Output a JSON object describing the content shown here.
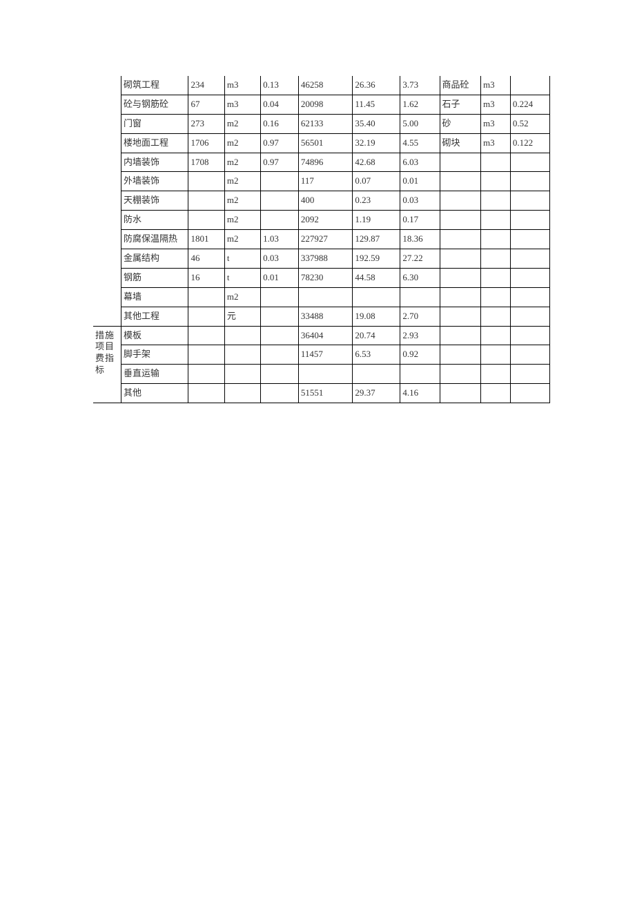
{
  "table": {
    "columns": [
      "group",
      "name",
      "qty",
      "unit",
      "idx",
      "amount",
      "perm2",
      "pct",
      "mat",
      "munit",
      "mval"
    ],
    "group1_label": "",
    "group2_label": "措施项目费指标",
    "rows": [
      {
        "name": "砌筑工程",
        "qty": "234",
        "unit": "m3",
        "idx": "0.13",
        "amount": "46258",
        "perm2": "26.36",
        "pct": "3.73",
        "mat": "商品砼",
        "munit": "m3",
        "mval": ""
      },
      {
        "name": "砼与钢筋砼",
        "qty": "67",
        "unit": "m3",
        "idx": "0.04",
        "amount": "20098",
        "perm2": "11.45",
        "pct": "1.62",
        "mat": "石子",
        "munit": "m3",
        "mval": "0.224"
      },
      {
        "name": "门窗",
        "qty": "273",
        "unit": "m2",
        "idx": "0.16",
        "amount": "62133",
        "perm2": "35.40",
        "pct": "5.00",
        "mat": "砂",
        "munit": "m3",
        "mval": "0.52"
      },
      {
        "name": "楼地面工程",
        "qty": "1706",
        "unit": "m2",
        "idx": "0.97",
        "amount": "56501",
        "perm2": "32.19",
        "pct": "4.55",
        "mat": "砌块",
        "munit": "m3",
        "mval": "0.122"
      },
      {
        "name": "内墙装饰",
        "qty": "1708",
        "unit": "m2",
        "idx": "0.97",
        "amount": "74896",
        "perm2": "42.68",
        "pct": "6.03",
        "mat": "",
        "munit": "",
        "mval": ""
      },
      {
        "name": "外墙装饰",
        "qty": "",
        "unit": "m2",
        "idx": "",
        "amount": "117",
        "perm2": "0.07",
        "pct": "0.01",
        "mat": "",
        "munit": "",
        "mval": ""
      },
      {
        "name": "天棚装饰",
        "qty": "",
        "unit": "m2",
        "idx": "",
        "amount": "400",
        "perm2": "0.23",
        "pct": "0.03",
        "mat": "",
        "munit": "",
        "mval": ""
      },
      {
        "name": "防水",
        "qty": "",
        "unit": "m2",
        "idx": "",
        "amount": "2092",
        "perm2": "1.19",
        "pct": "0.17",
        "mat": "",
        "munit": "",
        "mval": ""
      },
      {
        "name": "防腐保温隔热",
        "qty": "1801",
        "unit": "m2",
        "idx": "1.03",
        "amount": "227927",
        "perm2": "129.87",
        "pct": "18.36",
        "mat": "",
        "munit": "",
        "mval": ""
      },
      {
        "name": "金属结构",
        "qty": "46",
        "unit": "t",
        "idx": "0.03",
        "amount": "337988",
        "perm2": "192.59",
        "pct": "27.22",
        "mat": "",
        "munit": "",
        "mval": ""
      },
      {
        "name": "钢筋",
        "qty": "16",
        "unit": "t",
        "idx": "0.01",
        "amount": "78230",
        "perm2": "44.58",
        "pct": "6.30",
        "mat": "",
        "munit": "",
        "mval": ""
      },
      {
        "name": "幕墙",
        "qty": "",
        "unit": "m2",
        "idx": "",
        "amount": "",
        "perm2": "",
        "pct": "",
        "mat": "",
        "munit": "",
        "mval": ""
      },
      {
        "name": "其他工程",
        "qty": "",
        "unit": "元",
        "idx": "",
        "amount": "33488",
        "perm2": "19.08",
        "pct": "2.70",
        "mat": "",
        "munit": "",
        "mval": ""
      }
    ],
    "rows2": [
      {
        "name": "模板",
        "qty": "",
        "unit": "",
        "idx": "",
        "amount": "36404",
        "perm2": "20.74",
        "pct": "2.93",
        "mat": "",
        "munit": "",
        "mval": ""
      },
      {
        "name": "脚手架",
        "qty": "",
        "unit": "",
        "idx": "",
        "amount": "11457",
        "perm2": "6.53",
        "pct": "0.92",
        "mat": "",
        "munit": "",
        "mval": ""
      },
      {
        "name": "垂直运输",
        "qty": "",
        "unit": "",
        "idx": "",
        "amount": "",
        "perm2": "",
        "pct": "",
        "mat": "",
        "munit": "",
        "mval": ""
      },
      {
        "name": "其他",
        "qty": "",
        "unit": "",
        "idx": "",
        "amount": "51551",
        "perm2": "29.37",
        "pct": "4.16",
        "mat": "",
        "munit": "",
        "mval": ""
      }
    ],
    "style": {
      "border_color": "#000000",
      "background_color": "#ffffff",
      "text_color": "#333333",
      "fontsize": 13,
      "font_family": "SimSun",
      "cell_padding": "5px 3px",
      "col_widths": {
        "group": 34,
        "name": 82,
        "qty": 44,
        "unit": 44,
        "idx": 46,
        "amount": 66,
        "perm2": 58,
        "pct": 48,
        "mat": 50,
        "munit": 36,
        "mval": 48
      }
    }
  }
}
